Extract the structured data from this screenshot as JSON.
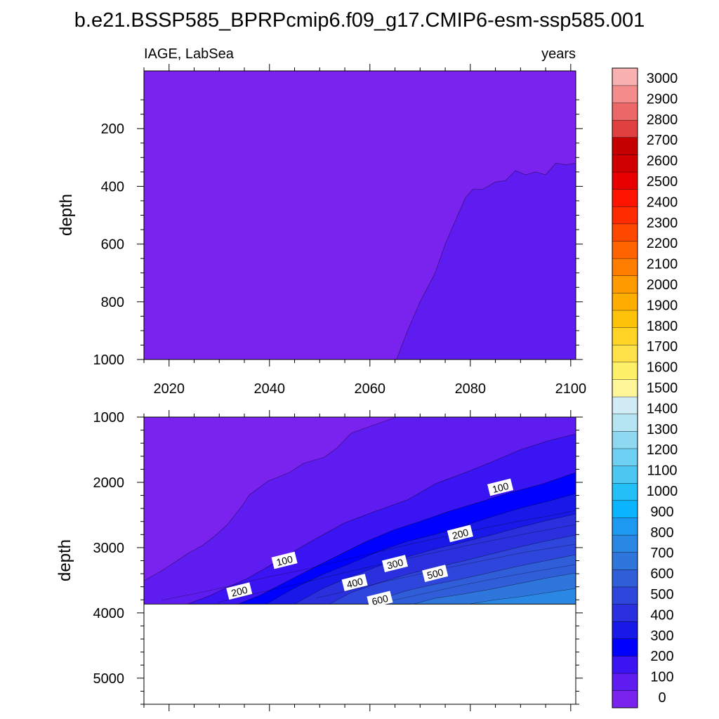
{
  "chart_data": {
    "type": "contour",
    "title": "b.e21.BSSP585_BPRPcmip6.f09_g17.CMIP6-esm-ssp585.001",
    "variable_label": "IAGE, LabSea",
    "units_label": "years",
    "xlim": [
      2015,
      2101
    ],
    "x_ticks": [
      "2020",
      "2040",
      "2060",
      "2080",
      "2100"
    ],
    "y_label": "depth",
    "colorbar": {
      "levels": [
        "0",
        "100",
        "200",
        "300",
        "400",
        "500",
        "600",
        "700",
        "800",
        "900",
        "1000",
        "1100",
        "1200",
        "1300",
        "1400",
        "1500",
        "1600",
        "1700",
        "1800",
        "1900",
        "2000",
        "2100",
        "2200",
        "2300",
        "2400",
        "2500",
        "2600",
        "2700",
        "2800",
        "2900",
        "3000"
      ],
      "colors": [
        "#7a22ee",
        "#5f1cf0",
        "#3a14f2",
        "#0000ff",
        "#1818e8",
        "#2a30dd",
        "#2e46db",
        "#2f5ed8",
        "#2e76db",
        "#2a88e4",
        "#1d9af0",
        "#0ab4ff",
        "#22c0f6",
        "#4ec6f2",
        "#6ed0f2",
        "#8fd8f2",
        "#b5e4f3",
        "#d2ecf6",
        "#fff69a",
        "#fff06a",
        "#ffe24a",
        "#ffd426",
        "#ffc20a",
        "#ffae00",
        "#ff9a00",
        "#ff7e00",
        "#ff6400",
        "#ff4800",
        "#ff2c00",
        "#ff1400",
        "#e80000",
        "#d00000",
        "#c40000",
        "#e04040",
        "#ec6868",
        "#f48c8c",
        "#f8b0b0"
      ]
    },
    "panels": [
      {
        "name": "upper",
        "ylim": [
          0,
          1000
        ],
        "y_ticks": [
          "200",
          "400",
          "600",
          "800",
          "1000"
        ],
        "regions": [
          {
            "level": "0-50",
            "color": "#7a22ee"
          },
          {
            "level": "50-100",
            "color": "#5f1cf0"
          }
        ],
        "contour_years_50": [
          2065.3,
          2067.5,
          2070,
          2073,
          2075,
          2077.5,
          2079,
          2080.5,
          2082.5,
          2085,
          2087,
          2089,
          2091,
          2093,
          2095,
          2097,
          2099,
          2101
        ],
        "contour_depths_50": [
          1000,
          900,
          800,
          700,
          600,
          500,
          440,
          410,
          410,
          385,
          380,
          345,
          360,
          350,
          360,
          320,
          325,
          320
        ]
      },
      {
        "name": "lower",
        "ylim": [
          1000,
          5400
        ],
        "y_ticks": [
          "1000",
          "2000",
          "3000",
          "4000",
          "5000"
        ],
        "bottom_depth": 3870,
        "contour_labels": [
          {
            "text": "100",
            "year": 2086,
            "depth": 2080
          },
          {
            "text": "200",
            "year": 2078,
            "depth": 2790
          },
          {
            "text": "300",
            "year": 2065,
            "depth": 3250
          },
          {
            "text": "500",
            "year": 2073,
            "depth": 3400
          },
          {
            "text": "100",
            "year": 2043,
            "depth": 3200
          },
          {
            "text": "400",
            "year": 2057,
            "depth": 3540
          },
          {
            "text": "200",
            "year": 2034,
            "depth": 3670
          },
          {
            "text": "600",
            "year": 2062,
            "depth": 3800
          }
        ]
      }
    ]
  }
}
